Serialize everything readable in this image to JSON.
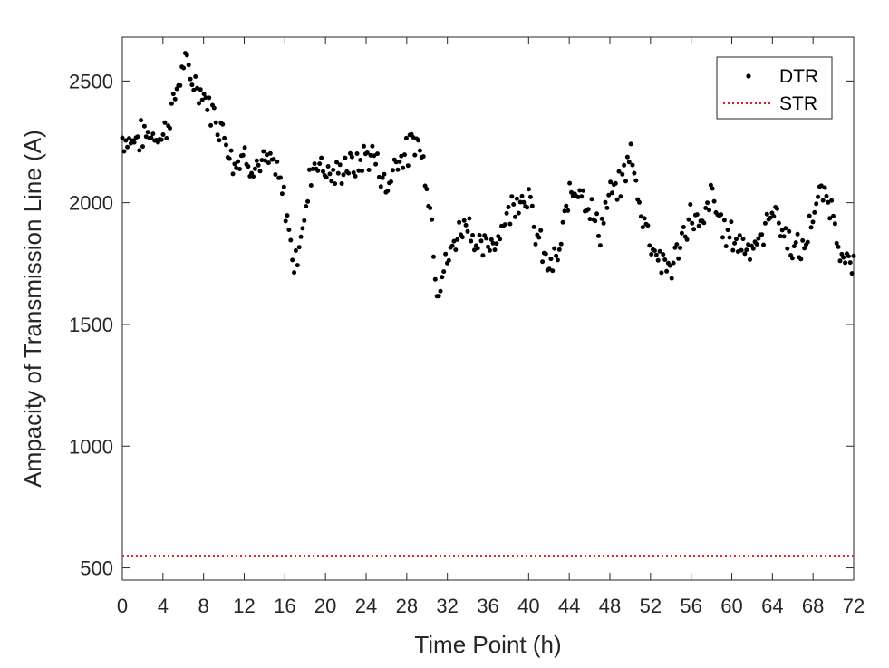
{
  "chart_data": {
    "type": "scatter",
    "xlabel": "Time Point (h)",
    "ylabel": "Ampacity of Transmission Line (A)",
    "xlim": [
      0,
      72
    ],
    "ylim": [
      450,
      2680
    ],
    "xticks": [
      "0",
      "4",
      "8",
      "12",
      "16",
      "20",
      "24",
      "28",
      "32",
      "36",
      "40",
      "44",
      "48",
      "52",
      "56",
      "60",
      "64",
      "68",
      "72"
    ],
    "yticks": [
      "500",
      "1000",
      "1500",
      "2000",
      "2500"
    ],
    "grid": false,
    "legend_position": "top-right",
    "legend": {
      "dtr_label": "DTR",
      "str_label": "STR"
    },
    "colors": {
      "dtr": "#000000",
      "str": "#e31a1c",
      "axis": "#262626"
    },
    "str_value": 550,
    "series": [
      {
        "name": "DTR",
        "marker": "dot",
        "anchor_points": [
          [
            0,
            2265
          ],
          [
            1,
            2255
          ],
          [
            2,
            2275
          ],
          [
            3,
            2285
          ],
          [
            4,
            2270
          ],
          [
            5,
            2400
          ],
          [
            6,
            2570
          ],
          [
            7,
            2500
          ],
          [
            8,
            2440
          ],
          [
            9,
            2360
          ],
          [
            10,
            2290
          ],
          [
            11,
            2160
          ],
          [
            12,
            2200
          ],
          [
            13,
            2150
          ],
          [
            14,
            2160
          ],
          [
            15,
            2150
          ],
          [
            16,
            2000
          ],
          [
            16.5,
            1860
          ],
          [
            17,
            1730
          ],
          [
            17.5,
            1870
          ],
          [
            18,
            1930
          ],
          [
            18.5,
            2120
          ],
          [
            19,
            2180
          ],
          [
            20,
            2140
          ],
          [
            21,
            2100
          ],
          [
            22,
            2160
          ],
          [
            23,
            2140
          ],
          [
            24,
            2200
          ],
          [
            25,
            2180
          ],
          [
            26,
            2050
          ],
          [
            27,
            2190
          ],
          [
            28,
            2200
          ],
          [
            29,
            2270
          ],
          [
            30,
            2100
          ],
          [
            30.5,
            1900
          ],
          [
            31,
            1650
          ],
          [
            32,
            1760
          ],
          [
            33,
            1870
          ],
          [
            34,
            1940
          ],
          [
            35,
            1800
          ],
          [
            36,
            1820
          ],
          [
            37,
            1870
          ],
          [
            38,
            1960
          ],
          [
            39,
            2030
          ],
          [
            40,
            2030
          ],
          [
            40.5,
            1900
          ],
          [
            41,
            1840
          ],
          [
            42,
            1730
          ],
          [
            43,
            1780
          ],
          [
            44,
            2040
          ],
          [
            45,
            2080
          ],
          [
            46,
            1980
          ],
          [
            47,
            1880
          ],
          [
            48,
            2030
          ],
          [
            49,
            2060
          ],
          [
            50,
            2210
          ],
          [
            51,
            1980
          ],
          [
            52,
            1850
          ],
          [
            53,
            1760
          ],
          [
            54,
            1730
          ],
          [
            55,
            1830
          ],
          [
            56,
            1960
          ],
          [
            57,
            1880
          ],
          [
            58,
            2040
          ],
          [
            59,
            1900
          ],
          [
            60,
            1860
          ],
          [
            61,
            1830
          ],
          [
            62,
            1830
          ],
          [
            63,
            1840
          ],
          [
            64,
            2000
          ],
          [
            65,
            1880
          ],
          [
            66,
            1820
          ],
          [
            67,
            1790
          ],
          [
            68,
            1960
          ],
          [
            69,
            2040
          ],
          [
            70,
            1960
          ],
          [
            71,
            1750
          ],
          [
            72,
            1730
          ]
        ]
      },
      {
        "name": "STR",
        "style": "dotted-line",
        "value": 550
      }
    ]
  }
}
